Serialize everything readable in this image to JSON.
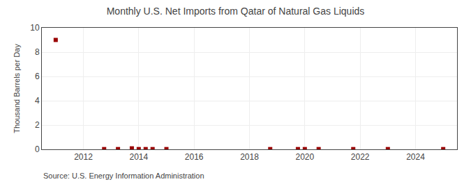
{
  "chart_data": {
    "type": "scatter",
    "title": "Monthly U.S. Net Imports from Qatar of Natural Gas Liquids",
    "ylabel": "Thousand Barrels per Day",
    "annotations": [
      "Source: U.S. Energy Information Administration"
    ],
    "x": [
      2011.0,
      2012.75,
      2013.25,
      2013.75,
      2014.0,
      2014.25,
      2014.5,
      2015.0,
      2018.75,
      2019.75,
      2020.0,
      2020.5,
      2021.75,
      2023.0,
      2025.0
    ],
    "values": [
      9.0,
      0.02,
      0.02,
      0.08,
      0.02,
      0.02,
      0.02,
      0.02,
      0.02,
      0.02,
      0.02,
      0.02,
      0.02,
      0.02,
      0.02
    ],
    "color": "#990000",
    "marker": "square",
    "xlim": [
      2010.5,
      2025.5
    ],
    "xticks": [
      2012,
      2014,
      2016,
      2018,
      2020,
      2022,
      2024
    ],
    "ylim": [
      0,
      10
    ],
    "yticks": [
      0,
      2,
      4,
      6,
      8,
      10
    ],
    "grid": true
  }
}
